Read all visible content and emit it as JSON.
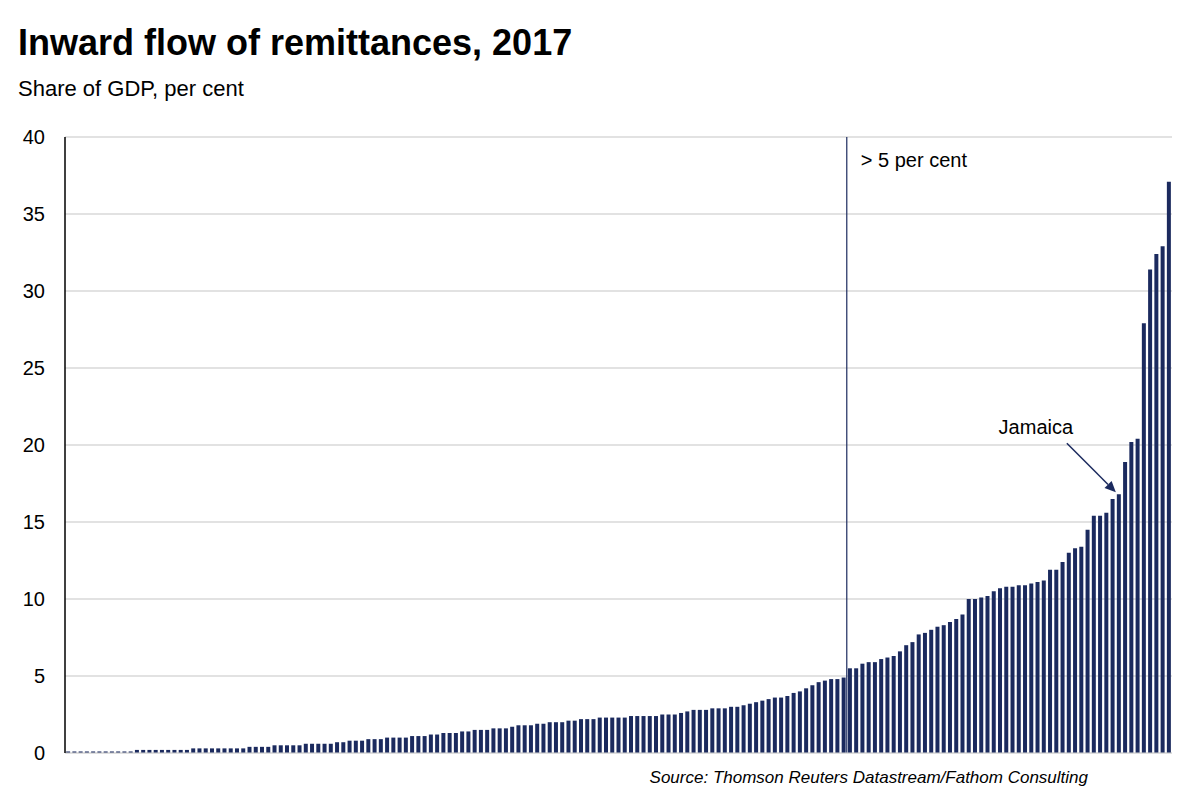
{
  "chart_data": {
    "type": "bar",
    "title": "Inward flow of remittances, 2017",
    "subtitle": "Share of GDP, per cent",
    "source": "Source: Thomson Reuters Datastream/Fathom Consulting",
    "categories": [
      null,
      null,
      null,
      null,
      null,
      null,
      null,
      null,
      null,
      null,
      null,
      null,
      null,
      null,
      null,
      null,
      null,
      null,
      null,
      null,
      null,
      null,
      null,
      null,
      null,
      null,
      null,
      null,
      null,
      null,
      null,
      null,
      null,
      null,
      null,
      null,
      null,
      null,
      null,
      null,
      null,
      null,
      null,
      null,
      null,
      null,
      null,
      null,
      null,
      null,
      null,
      null,
      null,
      null,
      null,
      null,
      null,
      null,
      null,
      null,
      null,
      null,
      null,
      null,
      null,
      null,
      null,
      null,
      null,
      null,
      null,
      null,
      null,
      null,
      null,
      null,
      null,
      null,
      null,
      null,
      null,
      null,
      null,
      null,
      null,
      null,
      null,
      null,
      null,
      null,
      null,
      null,
      null,
      null,
      null,
      null,
      null,
      null,
      null,
      null,
      null,
      null,
      null,
      null,
      null,
      null,
      null,
      null,
      null,
      null,
      null,
      null,
      null,
      null,
      null,
      null,
      null,
      null,
      null,
      null,
      null,
      null,
      null,
      null,
      null,
      null,
      null,
      null,
      null,
      null,
      null,
      null,
      null,
      null,
      null,
      null,
      null,
      null,
      null,
      null,
      null,
      null,
      null,
      null,
      null,
      null,
      null,
      null,
      null,
      null,
      null,
      null,
      null,
      null,
      null,
      null,
      null,
      null,
      null,
      null,
      null,
      null,
      null,
      null,
      null,
      null,
      null,
      null,
      null,
      null,
      null,
      null,
      null,
      null,
      null,
      null,
      null
    ],
    "values": [
      0.1,
      0.1,
      0.1,
      0.1,
      0.1,
      0.1,
      0.1,
      0.1,
      0.1,
      0.1,
      0.1,
      0.2,
      0.2,
      0.2,
      0.2,
      0.2,
      0.2,
      0.2,
      0.2,
      0.2,
      0.3,
      0.3,
      0.3,
      0.3,
      0.3,
      0.3,
      0.3,
      0.3,
      0.3,
      0.4,
      0.4,
      0.4,
      0.4,
      0.5,
      0.5,
      0.5,
      0.5,
      0.5,
      0.6,
      0.6,
      0.6,
      0.6,
      0.6,
      0.7,
      0.7,
      0.8,
      0.8,
      0.8,
      0.9,
      0.9,
      0.9,
      1.0,
      1.0,
      1.0,
      1.0,
      1.1,
      1.1,
      1.1,
      1.2,
      1.2,
      1.3,
      1.3,
      1.3,
      1.4,
      1.4,
      1.5,
      1.5,
      1.5,
      1.6,
      1.6,
      1.6,
      1.7,
      1.8,
      1.8,
      1.8,
      1.9,
      1.9,
      2.0,
      2.0,
      2.0,
      2.1,
      2.1,
      2.2,
      2.2,
      2.2,
      2.3,
      2.3,
      2.3,
      2.3,
      2.3,
      2.4,
      2.4,
      2.4,
      2.4,
      2.4,
      2.5,
      2.5,
      2.5,
      2.6,
      2.7,
      2.8,
      2.8,
      2.8,
      2.9,
      2.9,
      2.9,
      3.0,
      3.0,
      3.1,
      3.2,
      3.3,
      3.4,
      3.5,
      3.6,
      3.6,
      3.7,
      3.9,
      4.0,
      4.2,
      4.4,
      4.6,
      4.7,
      4.8,
      4.8,
      4.9,
      5.5,
      5.5,
      5.8,
      5.9,
      5.9,
      6.1,
      6.2,
      6.3,
      6.6,
      7.0,
      7.2,
      7.7,
      7.8,
      8.0,
      8.2,
      8.3,
      8.5,
      8.7,
      9.0,
      10.0,
      10.0,
      10.1,
      10.2,
      10.5,
      10.7,
      10.8,
      10.8,
      10.9,
      10.9,
      11.0,
      11.1,
      11.2,
      11.9,
      11.9,
      12.4,
      13.0,
      13.3,
      13.4,
      14.5,
      15.4,
      15.4,
      15.6,
      16.5,
      16.8,
      18.9,
      20.2,
      20.4,
      27.9,
      31.4,
      32.4,
      32.9,
      37.1
    ],
    "color": "#1b2a5e",
    "ylim": [
      0,
      40
    ],
    "yticks": [
      0,
      5,
      10,
      15,
      20,
      25,
      30,
      35,
      40
    ],
    "grid": true,
    "tick_labels": "y",
    "annotations": [
      {
        "text": "> 5 per cent",
        "threshold": 5
      },
      {
        "text": "Jamaica",
        "index": 168
      }
    ]
  }
}
